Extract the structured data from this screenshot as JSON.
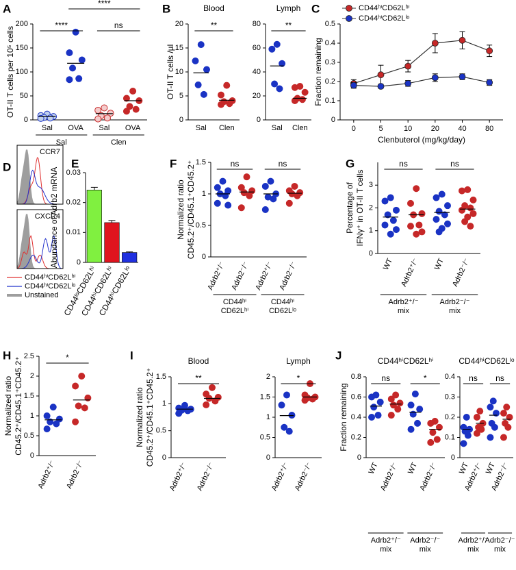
{
  "chart_data": [
    {
      "type": "strip",
      "panel": "A",
      "ylabel": [
        "OT-II T cells per 10⁵ cells"
      ],
      "ylim": [
        0,
        200
      ],
      "yticks": [
        0,
        50,
        100,
        150,
        200
      ],
      "categories": [
        "Sal",
        "OVA",
        "Sal",
        "OVA"
      ],
      "groups": [
        [
          "Sal"
        ],
        [
          "Clen"
        ]
      ],
      "colors": [
        "#c0d0ec",
        "#1a33c4",
        "#f4cccc",
        "#c62828"
      ],
      "edgecolors": [
        "#1a33c4",
        "#1a33c4",
        "#c62828",
        "#c62828"
      ],
      "points": [
        [
          12,
          9,
          7,
          5,
          4,
          3
        ],
        [
          183,
          140,
          125,
          108,
          86,
          84
        ],
        [
          25,
          20,
          14,
          9,
          4,
          2
        ],
        [
          60,
          45,
          40,
          28,
          22,
          18
        ]
      ],
      "means": [
        7,
        118,
        13,
        40
      ],
      "annotations": [
        {
          "text": "****",
          "between": [
            0,
            1
          ]
        },
        {
          "text": "ns",
          "between": [
            2,
            3
          ]
        },
        {
          "text": "****",
          "between": [
            1,
            3
          ]
        }
      ]
    },
    {
      "type": "strip",
      "panel": "B",
      "title": "Blood",
      "ylabel": [
        "OT-II T cells /µl"
      ],
      "ylim": [
        0,
        20
      ],
      "yticks": [
        0,
        5,
        10,
        15,
        20
      ],
      "categories": [
        "Sal",
        "Clen"
      ],
      "colors": [
        "#1a33c4",
        "#c62828"
      ],
      "edgecolors": [
        "#1a33c4",
        "#c62828"
      ],
      "points": [
        [
          15.7,
          12.3,
          10.5,
          7.3,
          5.3
        ],
        [
          7.2,
          5.2,
          4.0,
          3.8,
          3.4,
          3.2
        ]
      ],
      "means": [
        9.8,
        4.1
      ],
      "annotations": [
        {
          "text": "**",
          "between": [
            0,
            1
          ]
        }
      ]
    },
    {
      "type": "strip",
      "title": "Lymph",
      "ylim": [
        0,
        80
      ],
      "yticks": [
        0,
        20,
        40,
        60,
        80
      ],
      "categories": [
        "Sal",
        "Clen"
      ],
      "colors": [
        "#1a33c4",
        "#c62828"
      ],
      "edgecolors": [
        "#1a33c4",
        "#c62828"
      ],
      "points": [
        [
          63,
          59,
          47,
          30,
          26
        ],
        [
          28,
          27,
          23,
          18,
          17,
          16
        ]
      ],
      "means": [
        45,
        18
      ],
      "annotations": [
        {
          "text": "**",
          "between": [
            0,
            1
          ]
        }
      ]
    },
    {
      "type": "line",
      "panel": "C",
      "ylabel": [
        "Fraction remaining"
      ],
      "xlabel": "Clenbuterol (mg/kg/day)",
      "categories": [
        "0",
        "5",
        "10",
        "20",
        "40",
        "80"
      ],
      "ylim": [
        0,
        0.5
      ],
      "yticks": [
        0,
        0.1,
        0.2,
        0.3,
        0.4,
        0.5
      ],
      "series": [
        {
          "name": "CD44ʰⁱCD62Lʰⁱ",
          "color": "#c62828",
          "values": [
            0.19,
            0.235,
            0.28,
            0.4,
            0.415,
            0.36
          ],
          "errors": [
            0.02,
            0.05,
            0.03,
            0.05,
            0.045,
            0.03
          ]
        },
        {
          "name": "CD44ʰⁱCD62Lˡᵒ",
          "color": "#1a33c4",
          "values": [
            0.18,
            0.175,
            0.19,
            0.22,
            0.225,
            0.195
          ],
          "errors": [
            0.015,
            0.01,
            0.015,
            0.02,
            0.015,
            0.015
          ]
        }
      ]
    },
    {
      "type": "flow",
      "panel": "D",
      "labels": [
        "CCR7",
        "CXCR4"
      ],
      "series": [
        {
          "name": "CD44ʰⁱCD62Lʰⁱ",
          "color": "#e03030"
        },
        {
          "name": "CD44ʰⁱCD62Lˡᵒ",
          "color": "#2233cc"
        },
        {
          "name": "Unstained",
          "color": "#9e9e9e"
        }
      ]
    },
    {
      "type": "bar",
      "panel": "E",
      "ylabel": [
        "Abundance of Adrb2 mRNA"
      ],
      "ylim": [
        0,
        0.03
      ],
      "yticks": [
        0,
        0.01,
        0.02,
        0.03
      ],
      "categories": [
        "CD44ˡᵒCD62Lʰⁱ",
        "CD44ʰⁱCD62Lʰⁱ",
        "CD44ʰⁱCD62Lˡᵒ"
      ],
      "values": [
        0.0242,
        0.0133,
        0.0033
      ],
      "errors": [
        0.0009,
        0.0007,
        0.0002
      ],
      "colors": [
        "#80f040",
        "#e0141e",
        "#2030e0"
      ]
    },
    {
      "type": "strip",
      "panel": "F",
      "ylabel": [
        "Normalized ratio",
        "CD45.2⁺/CD45.1⁺CD45.2⁺"
      ],
      "ylim": [
        0,
        1.5
      ],
      "yticks": [
        0,
        0.5,
        1,
        1.5
      ],
      "categories": [
        "Adrb2⁺/⁻",
        "Adrb2⁻/⁻",
        "Adrb2⁺/⁻",
        "Adrb2⁻/⁻"
      ],
      "groups": [
        [
          "CD44ʰⁱ",
          "CD62Lʰⁱ"
        ],
        [
          "CD44ʰⁱ",
          "CD62Lˡᵒ"
        ]
      ],
      "colors": [
        "#1a33c4",
        "#c62828",
        "#1a33c4",
        "#c62828"
      ],
      "edgecolors": [
        "#1a33c4",
        "#c62828",
        "#1a33c4",
        "#c62828"
      ],
      "points": [
        [
          1.2,
          1.1,
          1.05,
          1.0,
          0.97,
          0.85,
          0.82
        ],
        [
          1.27,
          1.1,
          1.05,
          1.02,
          0.97,
          0.78
        ],
        [
          1.2,
          1.12,
          1.0,
          0.95,
          0.92,
          0.75
        ],
        [
          1.12,
          1.05,
          1.02,
          1.0,
          0.97,
          0.85
        ]
      ],
      "means": [
        1.0,
        1.03,
        1.0,
        1.01
      ],
      "annotations": [
        {
          "text": "ns",
          "between": [
            0,
            1
          ]
        },
        {
          "text": "ns",
          "between": [
            2,
            3
          ]
        }
      ]
    },
    {
      "type": "strip",
      "panel": "G",
      "ylabel": [
        "Percentage of",
        "IFNγ⁺ in OT-II T cells"
      ],
      "ylim": [
        0,
        4
      ],
      "yticks": [
        0,
        1,
        2,
        3
      ],
      "categories": [
        "WT",
        "Adrb2⁺/⁻",
        "WT",
        "Adrb2⁻/⁻"
      ],
      "groups": [
        [
          "Adrb2⁺/⁻",
          "mix"
        ],
        [
          "Adrb2⁻/⁻",
          "mix"
        ]
      ],
      "colors": [
        "#1a33c4",
        "#c62828",
        "#1a33c4",
        "#c62828"
      ],
      "edgecolors": [
        "#1a33c4",
        "#c62828",
        "#1a33c4",
        "#c62828"
      ],
      "points": [
        [
          2.45,
          2.3,
          1.9,
          1.7,
          1.45,
          1.25,
          1.05,
          0.85
        ],
        [
          2.85,
          2.2,
          1.75,
          1.7,
          1.25,
          1.2,
          0.95,
          0.85
        ],
        [
          2.6,
          2.45,
          2.1,
          1.85,
          1.7,
          1.5,
          1.3,
          1.1,
          0.95
        ],
        [
          2.8,
          2.75,
          2.35,
          2.1,
          2.0,
          1.9,
          1.75,
          1.6,
          1.4,
          1.2
        ]
      ],
      "means": [
        1.6,
        1.7,
        1.8,
        1.95
      ],
      "annotations": [
        {
          "text": "ns",
          "between": [
            0,
            1
          ]
        },
        {
          "text": "ns",
          "between": [
            2,
            3
          ]
        }
      ]
    },
    {
      "type": "strip",
      "panel": "H",
      "ylabel": [
        "Normalized ratio",
        "CD45.2⁺/CD45.1⁺CD45.2⁺"
      ],
      "ylim": [
        0,
        2.5
      ],
      "yticks": [
        0,
        0.5,
        1,
        1.5,
        2,
        2.5
      ],
      "categories": [
        "Adrb2⁺/⁻",
        "Adrb2⁻/⁻"
      ],
      "colors": [
        "#1a33c4",
        "#c62828"
      ],
      "edgecolors": [
        "#1a33c4",
        "#c62828"
      ],
      "points": [
        [
          1.22,
          1.0,
          0.92,
          0.85,
          0.8,
          0.67
        ],
        [
          2.0,
          1.75,
          1.45,
          1.25,
          1.2,
          0.85
        ]
      ],
      "means": [
        0.9,
        1.4
      ],
      "annotations": [
        {
          "text": "*",
          "between": [
            0,
            1
          ]
        }
      ]
    },
    {
      "type": "strip",
      "panel": "I",
      "title": "Blood",
      "ylabel": [
        "Normalized ratio",
        "CD45.2⁺/CD45.1⁺CD45.2⁺"
      ],
      "ylim": [
        0,
        1.5
      ],
      "yticks": [
        0,
        0.5,
        1,
        1.5
      ],
      "categories": [
        "Adrb2⁺/⁻",
        "Adrb2⁻/⁻"
      ],
      "colors": [
        "#1a33c4",
        "#c62828"
      ],
      "edgecolors": [
        "#1a33c4",
        "#c62828"
      ],
      "points": [
        [
          0.97,
          0.92,
          0.9,
          0.88,
          0.87,
          0.82
        ],
        [
          1.3,
          1.18,
          1.12,
          1.1,
          1.05,
          0.98
        ]
      ],
      "means": [
        0.9,
        1.1
      ],
      "annotations": [
        {
          "text": "**",
          "between": [
            0,
            1
          ]
        }
      ]
    },
    {
      "type": "strip",
      "title": "Lymph",
      "ylim": [
        0,
        2
      ],
      "yticks": [
        0,
        0.5,
        1,
        1.5,
        2
      ],
      "categories": [
        "Adrb2⁺/⁻",
        "Adrb2⁻/⁻"
      ],
      "colors": [
        "#1a33c4",
        "#c62828"
      ],
      "edgecolors": [
        "#1a33c4",
        "#c62828"
      ],
      "points": [
        [
          1.55,
          1.3,
          1.05,
          0.75,
          0.65
        ],
        [
          1.83,
          1.55,
          1.5,
          1.48,
          1.45,
          1.42
        ]
      ],
      "means": [
        1.04,
        1.5
      ],
      "annotations": [
        {
          "text": "*",
          "between": [
            0,
            1
          ]
        }
      ]
    },
    {
      "type": "strip",
      "panel": "J",
      "title": "CD44ʰⁱCD62Lʰⁱ",
      "ylabel": [
        "Fraction remaining"
      ],
      "ylim": [
        0,
        0.8
      ],
      "yticks": [
        0,
        0.2,
        0.4,
        0.6,
        0.8
      ],
      "categories": [
        "WT",
        "Adrb2⁺/⁻",
        "WT",
        "Adrb2⁻/⁻"
      ],
      "groups": [
        [
          "Adrb2⁺/⁻",
          "mix"
        ],
        [
          "Adrb2⁻/⁻",
          "mix"
        ]
      ],
      "colors": [
        "#1a33c4",
        "#c62828",
        "#1a33c4",
        "#c62828"
      ],
      "edgecolors": [
        "#1a33c4",
        "#c62828",
        "#1a33c4",
        "#c62828"
      ],
      "points": [
        [
          0.62,
          0.6,
          0.55,
          0.5,
          0.42,
          0.4
        ],
        [
          0.62,
          0.58,
          0.54,
          0.52,
          0.48,
          0.42
        ],
        [
          0.63,
          0.52,
          0.48,
          0.43,
          0.34,
          0.28
        ],
        [
          0.36,
          0.34,
          0.3,
          0.25,
          0.18,
          0.15
        ]
      ],
      "means": [
        0.51,
        0.53,
        0.45,
        0.28
      ],
      "annotations": [
        {
          "text": "ns",
          "between": [
            0,
            1
          ]
        },
        {
          "text": "*",
          "between": [
            2,
            3
          ]
        }
      ]
    },
    {
      "type": "strip",
      "title": "CD44ʰⁱCD62Lˡᵒ",
      "ylim": [
        0,
        0.4
      ],
      "yticks": [
        0,
        0.1,
        0.2,
        0.3,
        0.4
      ],
      "categories": [
        "WT",
        "Adrb2⁺/⁻",
        "WT",
        "Adrb2⁻/⁻"
      ],
      "groups": [
        [
          "Adrb2⁺/⁻",
          "mix"
        ],
        [
          "Adrb2⁻/⁻",
          "mix"
        ]
      ],
      "colors": [
        "#1a33c4",
        "#c62828",
        "#1a33c4",
        "#c62828"
      ],
      "edgecolors": [
        "#1a33c4",
        "#c62828",
        "#1a33c4",
        "#c62828"
      ],
      "points": [
        [
          0.2,
          0.15,
          0.14,
          0.13,
          0.11,
          0.07
        ],
        [
          0.23,
          0.2,
          0.17,
          0.15,
          0.14,
          0.12
        ],
        [
          0.28,
          0.25,
          0.22,
          0.17,
          0.15,
          0.1
        ],
        [
          0.25,
          0.22,
          0.2,
          0.17,
          0.15,
          0.1
        ]
      ],
      "means": [
        0.14,
        0.17,
        0.21,
        0.19
      ],
      "annotations": [
        {
          "text": "ns",
          "between": [
            0,
            1
          ]
        },
        {
          "text": "ns",
          "between": [
            2,
            3
          ]
        }
      ]
    }
  ]
}
